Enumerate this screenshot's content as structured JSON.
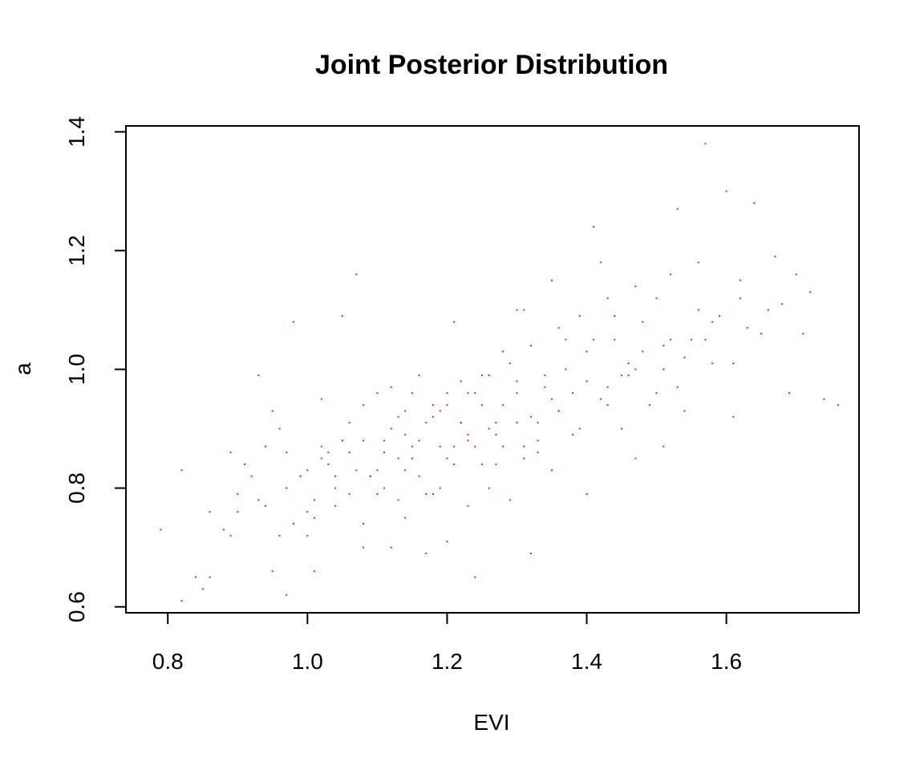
{
  "chart_data": {
    "type": "scatter",
    "title": "Joint Posterior Distribution",
    "xlabel": "EVI",
    "ylabel": "a",
    "xlim": [
      0.74,
      1.79
    ],
    "ylim": [
      0.59,
      1.41
    ],
    "x_ticks": [
      0.8,
      1.0,
      1.2,
      1.4,
      1.6
    ],
    "x_tick_labels": [
      "0.8",
      "1.0",
      "1.2",
      "1.4",
      "1.6"
    ],
    "y_ticks": [
      0.6,
      0.8,
      1.0,
      1.2,
      1.4
    ],
    "y_tick_labels": [
      "0.6",
      "0.8",
      "1.0",
      "1.2",
      "1.4"
    ],
    "grid": false,
    "point_color": "#a020f0",
    "series": [
      {
        "x": [
          0.79,
          0.82,
          0.82,
          0.84,
          0.85,
          0.86,
          0.86,
          0.88,
          0.89,
          0.89,
          0.9,
          0.9,
          0.92,
          0.93,
          0.94,
          0.95,
          0.96,
          0.97,
          0.97,
          0.98,
          0.98,
          0.99,
          1.0,
          1.01,
          1.01,
          1.02,
          1.02,
          1.03,
          1.04,
          1.05,
          1.05,
          1.06,
          1.07,
          1.08,
          1.08,
          1.09,
          1.1,
          1.1,
          1.11,
          1.12,
          1.12,
          1.13,
          1.14,
          1.14,
          1.15,
          1.16,
          1.16,
          1.17,
          1.18,
          1.18,
          1.19,
          1.2,
          1.2,
          1.21,
          1.22,
          1.22,
          1.23,
          1.24,
          1.24,
          1.25,
          1.26,
          1.26,
          1.27,
          1.28,
          1.28,
          1.29,
          1.3,
          1.3,
          1.31,
          1.32,
          1.32,
          1.33,
          1.34,
          1.35,
          1.35,
          1.36,
          1.37,
          1.38,
          1.39,
          1.4,
          1.41,
          1.42,
          1.43,
          1.44,
          1.45,
          1.46,
          1.47,
          1.48,
          1.49,
          1.5,
          1.51,
          1.52,
          1.53,
          1.54,
          1.56,
          1.57,
          1.58,
          1.6,
          1.61,
          1.62,
          1.64,
          1.65,
          1.67,
          1.69,
          1.71,
          1.72,
          1.74,
          1.76,
          0.97,
          1.06,
          1.08,
          1.13,
          1.15,
          1.21,
          1.25,
          1.31,
          1.35,
          1.41,
          1.45,
          1.53,
          1.58,
          1.23,
          1.26,
          1.19,
          0.95,
          1.0,
          1.04,
          1.07,
          1.11,
          1.14,
          1.17,
          1.2,
          1.23,
          1.26,
          1.29,
          1.32,
          1.36,
          1.39,
          1.43,
          1.47,
          1.52,
          1.56,
          1.62,
          0.91,
          0.94,
          0.99,
          1.02,
          1.05,
          1.09,
          1.12,
          1.15,
          1.18,
          1.21,
          1.24,
          1.27,
          1.3,
          1.33,
          1.37,
          1.4,
          1.44,
          1.48,
          1.51,
          1.55,
          1.59,
          1.63,
          1.68,
          0.93,
          0.97,
          1.0,
          1.03,
          1.06,
          1.1,
          1.13,
          1.16,
          1.19,
          1.22,
          1.25,
          1.28,
          1.31,
          1.34,
          1.38,
          1.42,
          1.46,
          1.5,
          1.54,
          0.96,
          1.01,
          1.04,
          1.08,
          1.11,
          1.14,
          1.17,
          1.2,
          1.23,
          1.27,
          1.3,
          1.33,
          1.36,
          1.4,
          1.43,
          1.47,
          1.51,
          1.57,
          1.61,
          1.66,
          1.7
        ],
        "y": [
          0.73,
          0.61,
          0.83,
          0.65,
          0.63,
          0.76,
          0.65,
          0.73,
          0.72,
          0.86,
          0.76,
          0.79,
          0.82,
          0.99,
          0.77,
          0.66,
          0.9,
          0.62,
          0.86,
          0.74,
          1.08,
          0.82,
          0.72,
          0.66,
          0.78,
          0.87,
          0.95,
          0.84,
          0.82,
          0.88,
          1.09,
          0.91,
          1.16,
          0.94,
          0.7,
          0.82,
          0.96,
          0.79,
          0.88,
          0.7,
          0.97,
          0.85,
          0.93,
          0.75,
          0.87,
          0.99,
          0.82,
          0.69,
          0.92,
          0.79,
          0.87,
          0.96,
          0.71,
          0.84,
          0.91,
          0.98,
          0.77,
          0.65,
          0.87,
          0.94,
          0.99,
          0.8,
          0.91,
          1.03,
          0.87,
          0.78,
          0.96,
          1.1,
          0.85,
          0.92,
          0.69,
          0.88,
          0.99,
          1.15,
          0.83,
          0.93,
          1.05,
          0.96,
          0.9,
          0.79,
          1.05,
          1.18,
          0.97,
          1.09,
          0.9,
          1.01,
          0.85,
          1.03,
          0.94,
          1.12,
          0.87,
          1.05,
          1.27,
          0.93,
          1.1,
          1.38,
          1.01,
          1.3,
          0.92,
          1.12,
          1.28,
          1.06,
          1.19,
          0.96,
          1.06,
          1.13,
          0.95,
          0.94,
          0.8,
          0.86,
          0.88,
          0.92,
          0.96,
          1.08,
          0.99,
          1.1,
          0.95,
          1.24,
          0.99,
          0.97,
          1.08,
          0.88,
          0.9,
          0.93,
          0.93,
          0.76,
          0.8,
          0.83,
          0.86,
          0.89,
          0.91,
          0.94,
          0.96,
          0.99,
          1.01,
          1.04,
          1.07,
          1.09,
          1.12,
          1.14,
          1.16,
          1.18,
          1.15,
          0.84,
          0.87,
          0.82,
          0.85,
          0.88,
          0.82,
          0.9,
          0.85,
          0.94,
          0.87,
          0.96,
          0.89,
          0.98,
          0.91,
          1.0,
          1.03,
          1.05,
          1.08,
          1.0,
          1.05,
          1.09,
          1.07,
          1.11,
          0.78,
          0.8,
          0.83,
          0.86,
          0.79,
          0.83,
          0.78,
          0.88,
          0.8,
          0.91,
          0.84,
          0.94,
          0.87,
          0.97,
          0.89,
          0.95,
          0.99,
          0.96,
          1.02,
          0.72,
          0.75,
          0.77,
          0.74,
          0.8,
          0.83,
          0.79,
          0.85,
          0.89,
          0.84,
          0.91,
          0.86,
          0.93,
          0.98,
          0.94,
          1.0,
          1.04,
          1.05,
          1.01,
          1.1,
          1.16
        ]
      }
    ]
  }
}
